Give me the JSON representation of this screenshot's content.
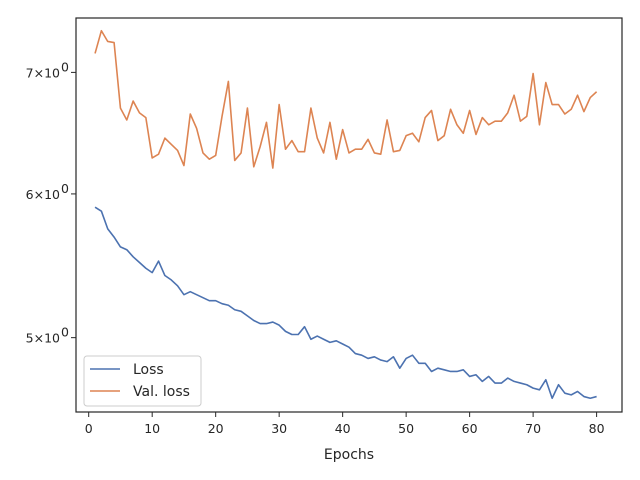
{
  "chart_data": {
    "type": "line",
    "title": "",
    "xlabel": "Epochs",
    "ylabel": "",
    "yscale": "log",
    "xlim": [
      -2.0,
      84.0
    ],
    "ylim": [
      4.55,
      7.5
    ],
    "grid": false,
    "legend_position": "lower-left",
    "x_ticks": [
      0,
      10,
      20,
      30,
      40,
      50,
      60,
      70,
      80
    ],
    "x_tick_labels": [
      "0",
      "10",
      "20",
      "30",
      "40",
      "50",
      "60",
      "70",
      "80"
    ],
    "y_ticks": [
      5,
      6,
      7
    ],
    "y_tick_mantissa": [
      "5×10",
      "6×10",
      "7×10"
    ],
    "y_tick_exponent": "0",
    "series": [
      {
        "name": "Loss",
        "color": "#4c72b0",
        "x": [
          1,
          2,
          3,
          4,
          5,
          6,
          7,
          8,
          9,
          10,
          11,
          12,
          13,
          14,
          15,
          16,
          17,
          18,
          19,
          20,
          21,
          22,
          23,
          24,
          25,
          26,
          27,
          28,
          29,
          30,
          31,
          32,
          33,
          34,
          35,
          36,
          37,
          38,
          39,
          40,
          41,
          42,
          43,
          44,
          45,
          46,
          47,
          48,
          49,
          50,
          51,
          52,
          53,
          54,
          55,
          56,
          57,
          58,
          59,
          60,
          61,
          62,
          63,
          64,
          65,
          66,
          67,
          68,
          69,
          70,
          71,
          72,
          73,
          74,
          75,
          76,
          77,
          78,
          79,
          80
        ],
        "values": [
          5.9,
          5.87,
          5.74,
          5.68,
          5.61,
          5.59,
          5.54,
          5.5,
          5.46,
          5.43,
          5.51,
          5.41,
          5.38,
          5.34,
          5.28,
          5.3,
          5.28,
          5.26,
          5.24,
          5.24,
          5.22,
          5.21,
          5.18,
          5.17,
          5.14,
          5.11,
          5.09,
          5.09,
          5.1,
          5.08,
          5.04,
          5.02,
          5.02,
          5.07,
          4.99,
          5.01,
          4.99,
          4.97,
          4.98,
          4.96,
          4.94,
          4.9,
          4.89,
          4.87,
          4.88,
          4.86,
          4.85,
          4.88,
          4.81,
          4.87,
          4.89,
          4.84,
          4.84,
          4.79,
          4.81,
          4.8,
          4.79,
          4.79,
          4.8,
          4.76,
          4.77,
          4.73,
          4.76,
          4.72,
          4.72,
          4.75,
          4.73,
          4.72,
          4.71,
          4.69,
          4.68,
          4.74,
          4.63,
          4.71,
          4.66,
          4.65,
          4.67,
          4.64,
          4.63,
          4.64
        ]
      },
      {
        "name": "Val. loss",
        "color": "#dd8452",
        "x": [
          1,
          2,
          3,
          4,
          5,
          6,
          7,
          8,
          9,
          10,
          11,
          12,
          13,
          14,
          15,
          16,
          17,
          18,
          19,
          20,
          21,
          22,
          23,
          24,
          25,
          26,
          27,
          28,
          29,
          30,
          31,
          32,
          33,
          34,
          35,
          36,
          37,
          38,
          39,
          40,
          41,
          42,
          43,
          44,
          45,
          46,
          47,
          48,
          49,
          50,
          51,
          52,
          53,
          54,
          55,
          56,
          57,
          58,
          59,
          60,
          61,
          62,
          63,
          64,
          65,
          66,
          67,
          68,
          69,
          70,
          71,
          72,
          73,
          74,
          75,
          76,
          77,
          78,
          79,
          80
        ],
        "values": [
          7.17,
          7.38,
          7.28,
          7.27,
          6.69,
          6.59,
          6.75,
          6.65,
          6.61,
          6.28,
          6.31,
          6.44,
          6.39,
          6.34,
          6.22,
          6.64,
          6.52,
          6.32,
          6.27,
          6.3,
          6.62,
          6.92,
          6.26,
          6.32,
          6.69,
          6.21,
          6.37,
          6.57,
          6.2,
          6.72,
          6.35,
          6.42,
          6.33,
          6.33,
          6.69,
          6.44,
          6.32,
          6.57,
          6.27,
          6.51,
          6.32,
          6.35,
          6.35,
          6.43,
          6.32,
          6.31,
          6.59,
          6.33,
          6.34,
          6.46,
          6.48,
          6.41,
          6.61,
          6.67,
          6.42,
          6.46,
          6.68,
          6.55,
          6.48,
          6.67,
          6.47,
          6.61,
          6.55,
          6.58,
          6.58,
          6.65,
          6.8,
          6.58,
          6.62,
          6.99,
          6.55,
          6.91,
          6.72,
          6.72,
          6.64,
          6.68,
          6.8,
          6.66,
          6.78,
          6.83
        ]
      }
    ]
  }
}
